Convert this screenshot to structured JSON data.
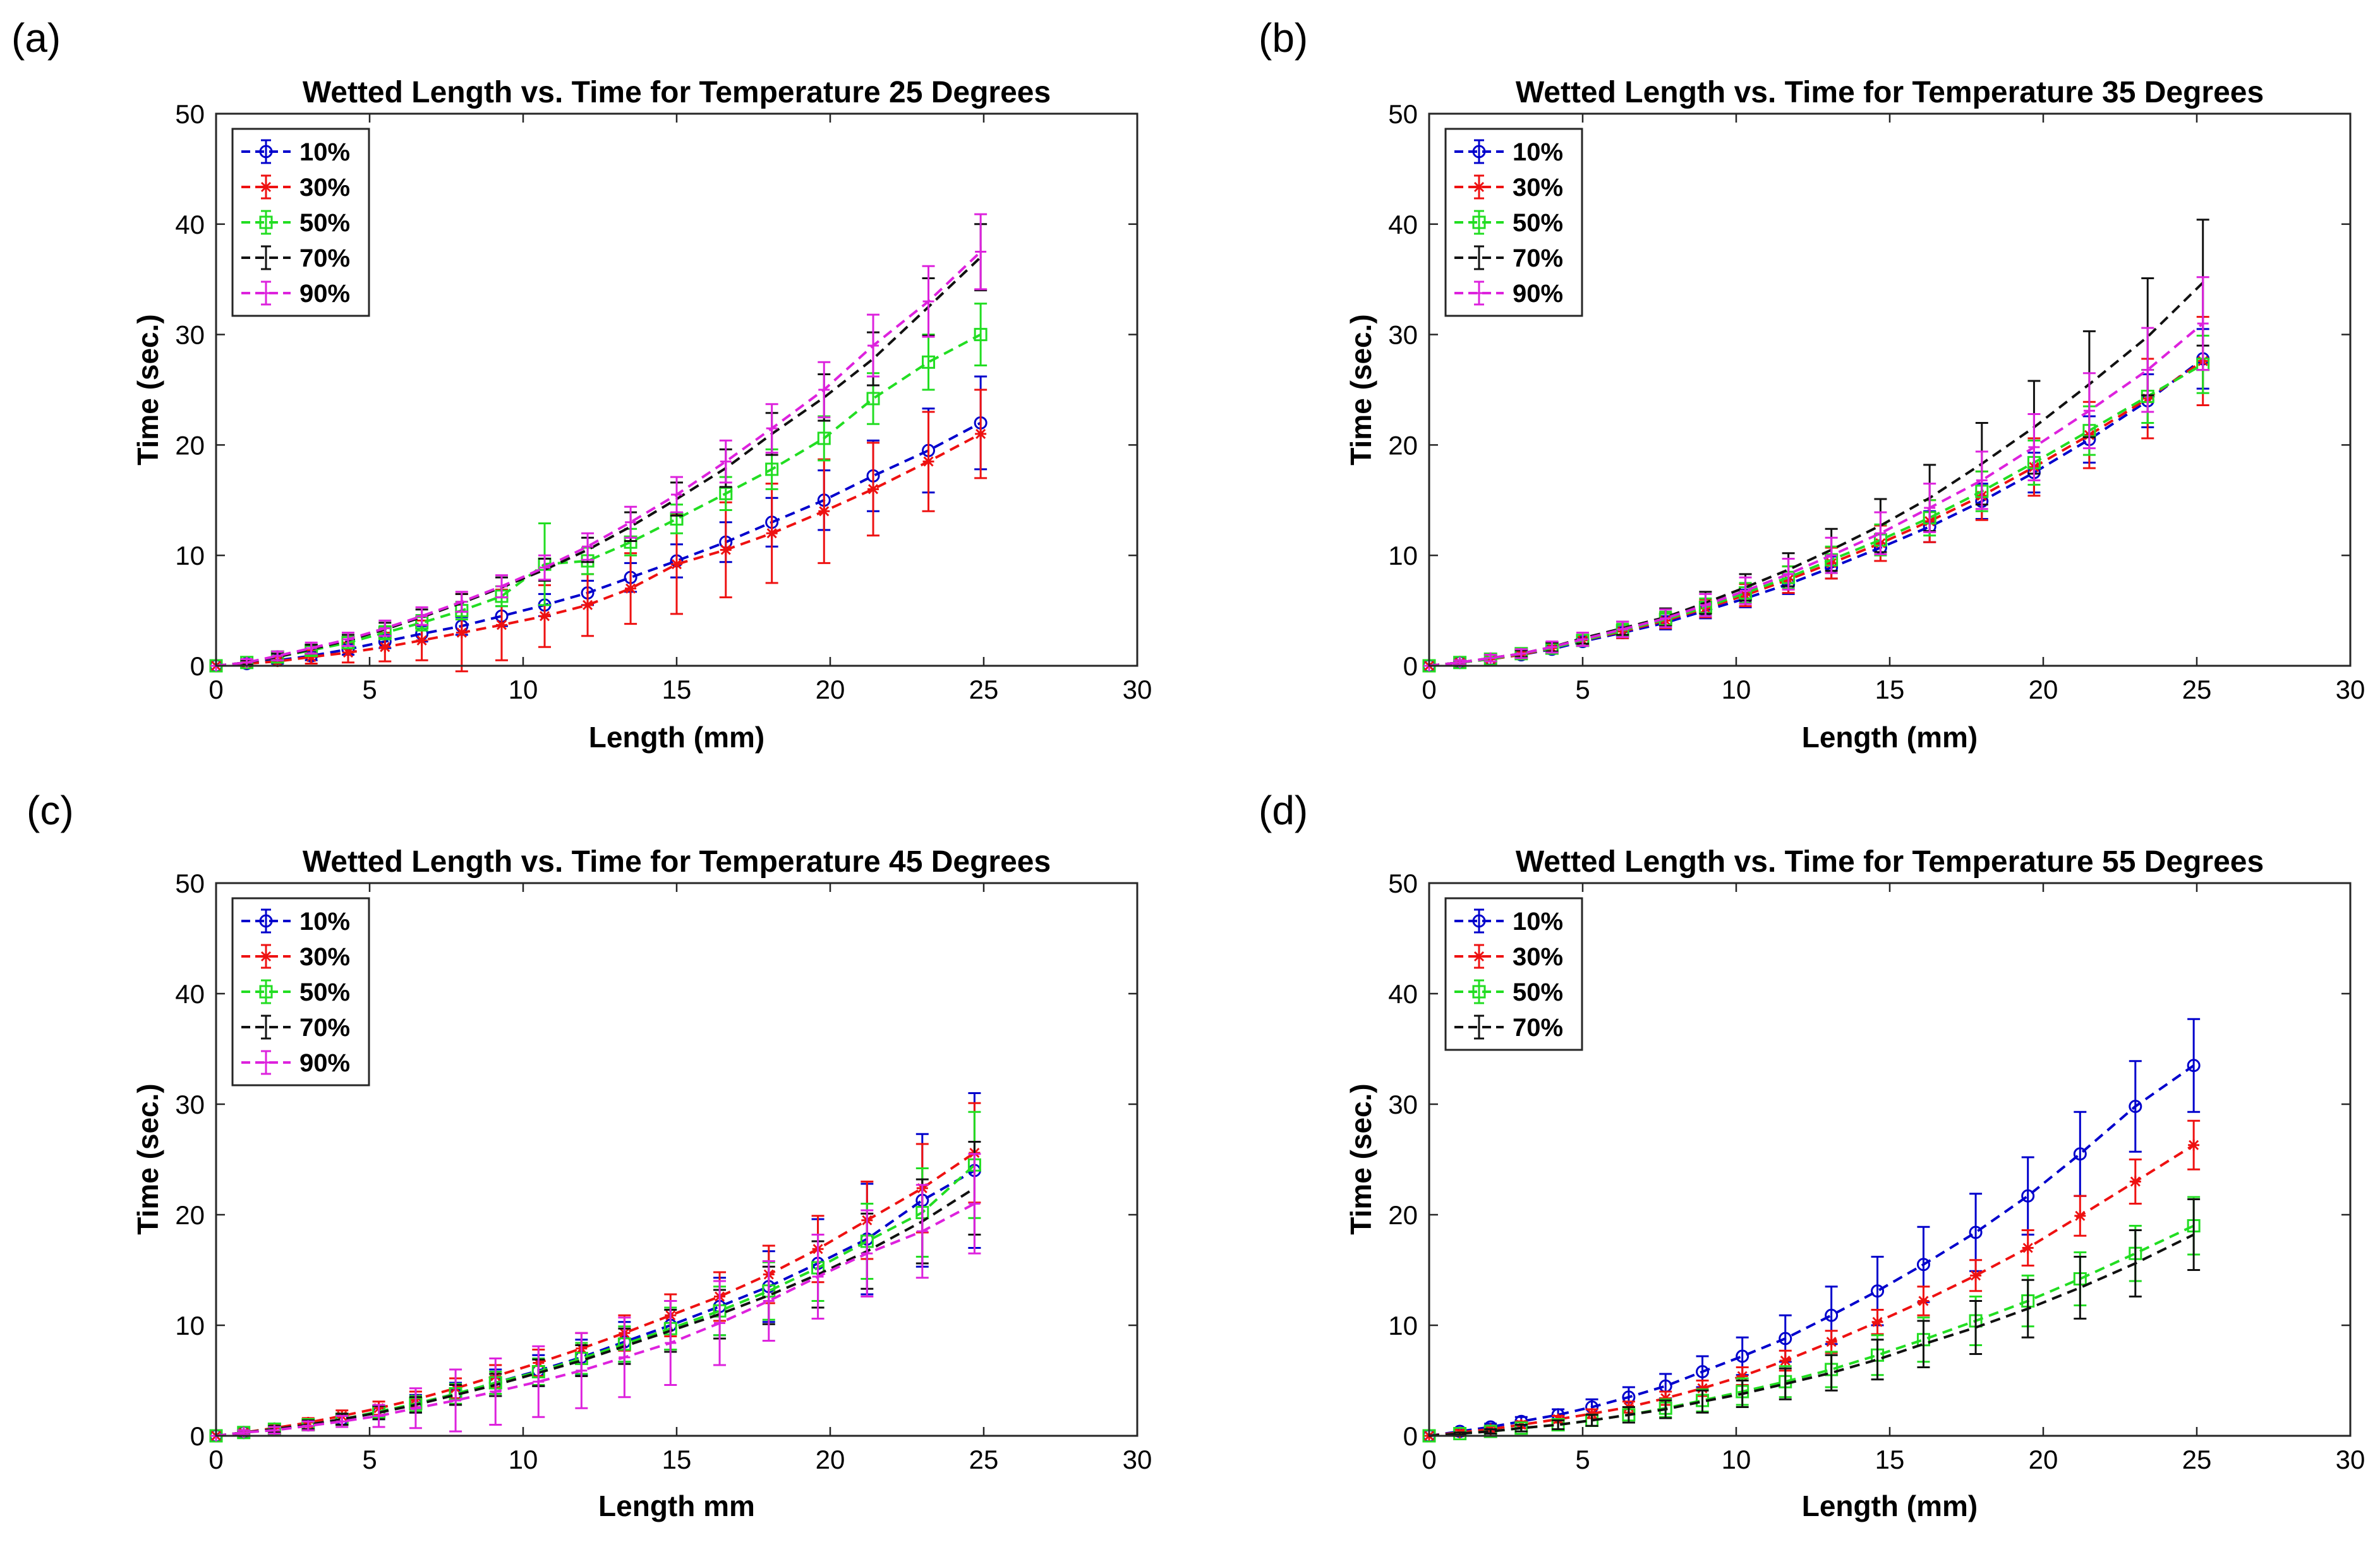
{
  "figure": {
    "panel_labels": [
      "(a)",
      "(b)",
      "(c)",
      "(d)"
    ]
  },
  "chart_data": [
    {
      "type": "line",
      "panel": "(a)",
      "title": "Wetted Length vs. Time for Temperature 25 Degrees",
      "xlabel": "Length (mm)",
      "ylabel": "Time (sec.)",
      "xlim": [
        0,
        30
      ],
      "ylim": [
        0,
        50
      ],
      "xticks": [
        0,
        5,
        10,
        15,
        20,
        25,
        30
      ],
      "yticks": [
        0,
        10,
        20,
        30,
        40,
        50
      ],
      "legend": "top-left",
      "x": [
        0,
        1,
        2,
        3.1,
        4.3,
        5.5,
        6.7,
        8,
        9.3,
        10.7,
        12.1,
        13.5,
        15,
        16.6,
        18.1,
        19.8,
        21.4,
        23.2,
        24.9
      ],
      "series": [
        {
          "name": "10%",
          "color": "#0000cc",
          "marker": "circle",
          "values": [
            0,
            0.2,
            0.5,
            0.9,
            1.5,
            2.2,
            2.9,
            3.6,
            4.5,
            5.5,
            6.6,
            8,
            9.5,
            11.2,
            13,
            15,
            17.2,
            19.5,
            22
          ],
          "errors": [
            0,
            0.2,
            0.3,
            0.4,
            0.5,
            0.6,
            0.7,
            0.8,
            0.9,
            1,
            1.1,
            1.3,
            1.5,
            1.8,
            2.2,
            2.7,
            3.2,
            3.8,
            4.2
          ]
        },
        {
          "name": "30%",
          "color": "#ee1111",
          "marker": "star",
          "values": [
            0,
            0.2,
            0.4,
            0.8,
            1.2,
            1.7,
            2.3,
            3,
            3.7,
            4.5,
            5.5,
            7,
            9.2,
            10.5,
            12,
            14,
            16,
            18.5,
            21
          ],
          "errors": [
            0,
            0.2,
            0.4,
            0.6,
            0.9,
            1.3,
            1.8,
            3.5,
            3.2,
            2.8,
            2.8,
            3.2,
            4.5,
            4.3,
            4.5,
            4.7,
            4.2,
            4.5,
            4
          ]
        },
        {
          "name": "50%",
          "color": "#22dd22",
          "marker": "square",
          "values": [
            0,
            0.3,
            0.8,
            1.4,
            2.1,
            3,
            3.9,
            5,
            6.3,
            9.2,
            9.5,
            11.2,
            13.3,
            15.6,
            17.8,
            20.6,
            24.2,
            27.5,
            30
          ],
          "errors": [
            0,
            0.2,
            0.3,
            0.4,
            0.5,
            0.6,
            0.7,
            0.8,
            0.9,
            3.7,
            1.2,
            1.2,
            1.3,
            1.5,
            1.8,
            2,
            2.3,
            2.5,
            2.8
          ]
        },
        {
          "name": "70%",
          "color": "#111111",
          "marker": "none",
          "values": [
            0,
            0.3,
            0.8,
            1.5,
            2.3,
            3.3,
            4.4,
            5.7,
            7.1,
            8.7,
            10.5,
            12.6,
            15.1,
            17.9,
            21,
            24.3,
            27.8,
            32.5,
            37
          ],
          "errors": [
            0,
            0.2,
            0.3,
            0.4,
            0.5,
            0.6,
            0.7,
            0.8,
            0.9,
            1,
            1.1,
            1.3,
            1.5,
            1.7,
            1.9,
            2.1,
            2.4,
            2.6,
            3
          ]
        },
        {
          "name": "90%",
          "color": "#dd22dd",
          "marker": "plus",
          "values": [
            0,
            0.3,
            0.9,
            1.6,
            2.4,
            3.4,
            4.5,
            5.8,
            7.2,
            8.9,
            10.8,
            13,
            15.5,
            18.5,
            21.5,
            25,
            29,
            33,
            37.5
          ],
          "errors": [
            0,
            0.3,
            0.4,
            0.5,
            0.6,
            0.7,
            0.8,
            0.9,
            1,
            1.1,
            1.2,
            1.4,
            1.6,
            1.9,
            2.2,
            2.5,
            2.8,
            3.2,
            3.4
          ]
        }
      ]
    },
    {
      "type": "line",
      "panel": "(b)",
      "title": "Wetted Length vs. Time for Temperature 35 Degrees",
      "xlabel": "Length (mm)",
      "ylabel": "Time (sec.)",
      "xlim": [
        0,
        30
      ],
      "ylim": [
        0,
        50
      ],
      "xticks": [
        0,
        5,
        10,
        15,
        20,
        25,
        30
      ],
      "yticks": [
        0,
        10,
        20,
        30,
        40,
        50
      ],
      "legend": "top-left",
      "x": [
        0,
        1,
        2,
        3,
        4,
        5,
        6.3,
        7.7,
        9,
        10.3,
        11.7,
        13.1,
        14.7,
        16.3,
        18,
        19.7,
        21.5,
        23.4,
        25.2
      ],
      "series": [
        {
          "name": "10%",
          "color": "#0000cc",
          "marker": "circle",
          "values": [
            0,
            0.3,
            0.6,
            1,
            1.5,
            2.2,
            3,
            3.9,
            5,
            6.1,
            7.4,
            8.9,
            10.7,
            12.6,
            14.9,
            17.5,
            20.5,
            24,
            27.8
          ],
          "errors": [
            0,
            0.2,
            0.2,
            0.3,
            0.3,
            0.4,
            0.5,
            0.6,
            0.7,
            0.8,
            0.9,
            1,
            1.2,
            1.4,
            1.6,
            1.8,
            2.1,
            2.4,
            2.7
          ]
        },
        {
          "name": "30%",
          "color": "#ee1111",
          "marker": "star",
          "values": [
            0,
            0.3,
            0.6,
            1,
            1.6,
            2.3,
            3.1,
            4.1,
            5.2,
            6.4,
            7.8,
            9.3,
            11.1,
            13.1,
            15.4,
            18,
            20.9,
            24.2,
            27.6
          ],
          "errors": [
            0,
            0.2,
            0.2,
            0.3,
            0.4,
            0.5,
            0.6,
            0.7,
            0.8,
            1,
            1.2,
            1.4,
            1.6,
            1.9,
            2.2,
            2.6,
            3,
            3.6,
            4
          ]
        },
        {
          "name": "50%",
          "color": "#22dd22",
          "marker": "square",
          "values": [
            0,
            0.3,
            0.6,
            1.1,
            1.6,
            2.3,
            3.2,
            4.2,
            5.3,
            6.6,
            8,
            9.6,
            11.4,
            13.4,
            15.8,
            18.4,
            21.3,
            24.4,
            27.3
          ],
          "errors": [
            0,
            0.2,
            0.2,
            0.3,
            0.4,
            0.5,
            0.6,
            0.7,
            0.8,
            0.9,
            1,
            1.2,
            1.4,
            1.6,
            1.8,
            2,
            2.2,
            2.4,
            2.6
          ]
        },
        {
          "name": "70%",
          "color": "#111111",
          "marker": "none",
          "values": [
            0,
            0.3,
            0.7,
            1.1,
            1.7,
            2.5,
            3.4,
            4.4,
            5.7,
            7.1,
            8.7,
            10.5,
            12.7,
            15.2,
            18.3,
            21.6,
            25.5,
            29.8,
            34.7
          ],
          "errors": [
            0,
            0.2,
            0.3,
            0.3,
            0.4,
            0.5,
            0.6,
            0.8,
            1,
            1.2,
            1.5,
            1.9,
            2.4,
            3,
            3.7,
            4.2,
            4.8,
            5.3,
            5.7
          ]
        },
        {
          "name": "90%",
          "color": "#dd22dd",
          "marker": "plus",
          "values": [
            0,
            0.3,
            0.7,
            1.1,
            1.7,
            2.4,
            3.3,
            4.3,
            5.5,
            6.8,
            8.3,
            10,
            12,
            14.3,
            16.8,
            19.8,
            23.1,
            26.8,
            31
          ],
          "errors": [
            0,
            0.2,
            0.3,
            0.4,
            0.5,
            0.6,
            0.7,
            0.8,
            1,
            1.2,
            1.4,
            1.6,
            1.9,
            2.2,
            2.6,
            3,
            3.4,
            3.8,
            4.2
          ]
        }
      ]
    },
    {
      "type": "line",
      "panel": "(c)",
      "title": "Wetted Length vs. Time for Temperature 45 Degrees",
      "xlabel": "Length mm",
      "ylabel": "Time (sec.)",
      "xlim": [
        0,
        30
      ],
      "ylim": [
        0,
        50
      ],
      "xticks": [
        0,
        5,
        10,
        15,
        20,
        25,
        30
      ],
      "yticks": [
        0,
        10,
        20,
        30,
        40,
        50
      ],
      "legend": "top-left",
      "x": [
        0,
        0.9,
        1.9,
        3,
        4.1,
        5.3,
        6.5,
        7.8,
        9.1,
        10.5,
        11.9,
        13.3,
        14.8,
        16.4,
        18,
        19.6,
        21.2,
        23,
        24.7
      ],
      "series": [
        {
          "name": "10%",
          "color": "#0000cc",
          "marker": "circle",
          "values": [
            0,
            0.3,
            0.6,
            1,
            1.5,
            2.1,
            2.9,
            3.8,
            4.8,
            5.9,
            7.1,
            8.5,
            10,
            11.7,
            13.5,
            15.6,
            17.8,
            21.3,
            24
          ],
          "errors": [
            0,
            0.2,
            0.3,
            0.4,
            0.5,
            0.6,
            0.8,
            1,
            1.2,
            1.4,
            1.6,
            1.8,
            2.2,
            2.6,
            3.2,
            4,
            5,
            6,
            7
          ]
        },
        {
          "name": "30%",
          "color": "#ee1111",
          "marker": "star",
          "values": [
            0,
            0.3,
            0.7,
            1.2,
            1.8,
            2.5,
            3.3,
            4.3,
            5.4,
            6.6,
            7.9,
            9.3,
            10.9,
            12.6,
            14.6,
            16.9,
            19.5,
            22.4,
            25.6
          ],
          "errors": [
            0,
            0.2,
            0.3,
            0.4,
            0.5,
            0.6,
            0.7,
            0.9,
            1,
            1.2,
            1.4,
            1.6,
            1.9,
            2.2,
            2.6,
            3,
            3.5,
            4,
            4.5
          ]
        },
        {
          "name": "50%",
          "color": "#22dd22",
          "marker": "square",
          "values": [
            0,
            0.3,
            0.6,
            1,
            1.5,
            2.2,
            2.9,
            3.8,
            4.8,
            5.8,
            7,
            8.3,
            9.7,
            11.3,
            13.1,
            15.2,
            17.6,
            20.2,
            24.5
          ],
          "errors": [
            0,
            0.2,
            0.3,
            0.4,
            0.5,
            0.6,
            0.7,
            0.9,
            1,
            1.2,
            1.4,
            1.6,
            1.9,
            2.2,
            2.6,
            3,
            3.4,
            4,
            4.8
          ]
        },
        {
          "name": "70%",
          "color": "#111111",
          "marker": "none",
          "values": [
            0,
            0.3,
            0.6,
            1,
            1.5,
            2.1,
            2.8,
            3.7,
            4.6,
            5.7,
            6.8,
            8.1,
            9.5,
            11,
            12.7,
            14.6,
            16.7,
            19.4,
            22.4
          ],
          "errors": [
            0,
            0.2,
            0.3,
            0.4,
            0.5,
            0.6,
            0.7,
            0.9,
            1,
            1.2,
            1.4,
            1.6,
            1.9,
            2.2,
            2.6,
            3,
            3.4,
            3.8,
            4.2
          ]
        },
        {
          "name": "90%",
          "color": "#dd22dd",
          "marker": "plus",
          "values": [
            0,
            0.3,
            0.5,
            0.9,
            1.3,
            1.8,
            2.5,
            3.2,
            4,
            4.9,
            5.9,
            7.1,
            8.4,
            10.2,
            12.2,
            14.4,
            16.5,
            18.5,
            21
          ],
          "errors": [
            0,
            0.2,
            0.3,
            0.4,
            0.5,
            1,
            1.8,
            2.8,
            3,
            3.2,
            3.4,
            3.6,
            3.8,
            3.8,
            3.6,
            3.8,
            3.9,
            4.2,
            4.5
          ]
        }
      ]
    },
    {
      "type": "line",
      "panel": "(d)",
      "title": "Wetted Length vs. Time for Temperature 55 Degrees",
      "xlabel": "Length (mm)",
      "ylabel": "Time (sec.)",
      "xlim": [
        0,
        30
      ],
      "ylim": [
        0,
        50
      ],
      "xticks": [
        0,
        5,
        10,
        15,
        20,
        25,
        30
      ],
      "yticks": [
        0,
        10,
        20,
        30,
        40,
        50
      ],
      "legend": "top-left",
      "x": [
        0,
        1,
        2,
        3,
        4.2,
        5.3,
        6.5,
        7.7,
        8.9,
        10.2,
        11.6,
        13.1,
        14.6,
        16.1,
        17.8,
        19.5,
        21.2,
        23,
        24.9
      ],
      "series": [
        {
          "name": "10%",
          "color": "#0000cc",
          "marker": "circle",
          "values": [
            0,
            0.4,
            0.8,
            1.3,
            1.9,
            2.6,
            3.5,
            4.5,
            5.8,
            7.2,
            8.8,
            10.9,
            13.1,
            15.5,
            18.4,
            21.7,
            25.5,
            29.8,
            33.5
          ],
          "errors": [
            0,
            0.2,
            0.3,
            0.4,
            0.5,
            0.7,
            0.9,
            1.1,
            1.4,
            1.7,
            2.1,
            2.6,
            3.1,
            3.4,
            3.5,
            3.5,
            3.8,
            4.1,
            4.2
          ]
        },
        {
          "name": "30%",
          "color": "#ee1111",
          "marker": "star",
          "values": [
            0,
            0.3,
            0.6,
            1,
            1.5,
            2,
            2.6,
            3.4,
            4.3,
            5.4,
            6.8,
            8.5,
            10.3,
            12.2,
            14.5,
            17,
            19.9,
            23,
            26.3
          ],
          "errors": [
            0,
            0.2,
            0.2,
            0.3,
            0.3,
            0.4,
            0.5,
            0.6,
            0.7,
            0.8,
            0.9,
            1,
            1.1,
            1.3,
            1.4,
            1.6,
            1.8,
            2,
            2.2
          ]
        },
        {
          "name": "50%",
          "color": "#22dd22",
          "marker": "square",
          "values": [
            0,
            0.2,
            0.4,
            0.7,
            1,
            1.4,
            1.9,
            2.5,
            3.2,
            4,
            4.9,
            6,
            7.3,
            8.7,
            10.4,
            12.2,
            14.2,
            16.5,
            19
          ],
          "errors": [
            0,
            0.1,
            0.2,
            0.3,
            0.4,
            0.5,
            0.7,
            0.8,
            1,
            1.2,
            1.4,
            1.6,
            1.8,
            2,
            2.2,
            2.3,
            2.4,
            2.5,
            2.6
          ]
        },
        {
          "name": "70%",
          "color": "#111111",
          "marker": "none",
          "values": [
            0,
            0.2,
            0.4,
            0.7,
            1,
            1.4,
            1.9,
            2.4,
            3.1,
            3.8,
            4.7,
            5.7,
            6.9,
            8.3,
            9.8,
            11.5,
            13.4,
            15.6,
            18.2
          ],
          "errors": [
            0,
            0.1,
            0.2,
            0.3,
            0.4,
            0.5,
            0.7,
            0.8,
            1,
            1.2,
            1.4,
            1.6,
            1.8,
            2.1,
            2.4,
            2.6,
            2.8,
            3,
            3.2
          ]
        }
      ]
    }
  ]
}
